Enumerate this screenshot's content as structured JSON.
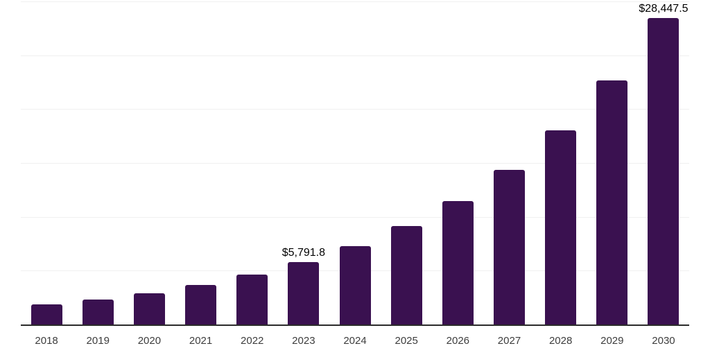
{
  "chart_data": {
    "type": "bar",
    "title": "",
    "xlabel": "",
    "ylabel": "",
    "categories": [
      "2018",
      "2019",
      "2020",
      "2021",
      "2022",
      "2023",
      "2024",
      "2025",
      "2026",
      "2027",
      "2028",
      "2029",
      "2030"
    ],
    "values": [
      1850,
      2320,
      2920,
      3670,
      4610,
      5791.8,
      7270,
      9130,
      11460,
      14390,
      18060,
      22680,
      28447.5
    ],
    "bar_labels": [
      "",
      "",
      "",
      "",
      "",
      "$5,791.8",
      "",
      "",
      "",
      "",
      "",
      "",
      "$28,447.5"
    ],
    "ylim": [
      0,
      30000
    ],
    "grid_step": 5000,
    "grid": true,
    "legend": false,
    "colors": {
      "bar": "#3a1150",
      "gridline": "#f0f0f0",
      "axis": "#2b2b2b",
      "value_label": "#000000",
      "tick_label": "#3d3d3d"
    }
  }
}
